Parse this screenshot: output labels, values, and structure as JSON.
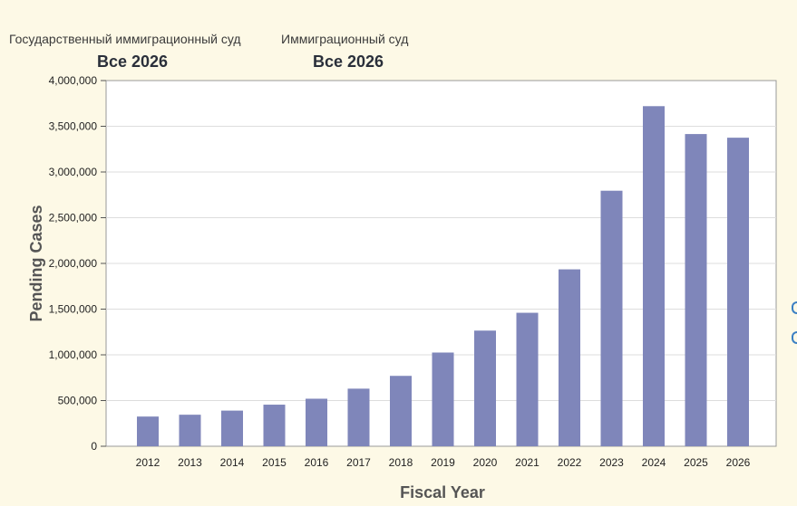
{
  "filters": [
    {
      "label": "Государственный иммиграционный суд",
      "value": "Все 2026"
    },
    {
      "label": "Иммиграционный суд",
      "value": "Все 2026"
    }
  ],
  "chart_data": {
    "type": "bar",
    "categories": [
      "2012",
      "2013",
      "2014",
      "2015",
      "2016",
      "2017",
      "2018",
      "2019",
      "2020",
      "2021",
      "2022",
      "2023",
      "2024",
      "2025",
      "2026"
    ],
    "values": [
      325000,
      345000,
      390000,
      455000,
      520000,
      630000,
      770000,
      1025000,
      1265000,
      1460000,
      1935000,
      2795000,
      3720000,
      3415000,
      3375000
    ],
    "xlabel": "Fiscal Year",
    "ylabel": "Pending Cases",
    "ylim": [
      0,
      4000000
    ],
    "yticks": [
      "0",
      "500,000",
      "1,000,000",
      "1,500,000",
      "2,000,000",
      "2,500,000",
      "3,000,000",
      "3,500,000",
      "4,000,000"
    ],
    "grid": true,
    "bar_color": "#7f86ba"
  }
}
